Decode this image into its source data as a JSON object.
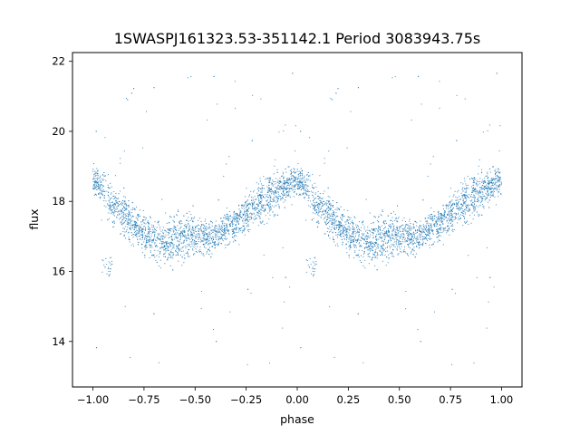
{
  "chart_data": {
    "type": "scatter",
    "title": "1SWASPJ161323.53-351142.1 Period 3083943.75s",
    "xlabel": "phase",
    "ylabel": "flux",
    "xlim": [
      -1.1,
      1.1
    ],
    "ylim": [
      12.7,
      22.25
    ],
    "xticks": [
      -1.0,
      -0.75,
      -0.5,
      -0.25,
      0.0,
      0.25,
      0.5,
      0.75,
      1.0
    ],
    "xtick_labels": [
      "−1.00",
      "−0.75",
      "−0.50",
      "−0.25",
      "0.00",
      "0.25",
      "0.50",
      "0.75",
      "1.00"
    ],
    "yticks": [
      14,
      16,
      18,
      20,
      22
    ],
    "ytick_labels": [
      "14",
      "16",
      "18",
      "20",
      "22"
    ],
    "grid": false,
    "legend": "none",
    "marker_color": "#1f77b4",
    "series": [
      {
        "phase_range": [
          -1.0,
          1.0
        ],
        "folded_period_phase": 1.0,
        "envelope": {
          "phase": [
            0.0,
            0.04,
            0.08,
            0.12,
            0.16,
            0.2,
            0.25,
            0.3,
            0.35,
            0.4,
            0.45,
            0.5,
            0.55,
            0.6,
            0.65,
            0.7,
            0.75,
            0.8,
            0.85,
            0.9,
            0.95,
            1.0
          ],
          "median_flux": [
            18.6,
            18.5,
            18.0,
            17.8,
            17.5,
            17.3,
            17.1,
            16.9,
            16.8,
            16.9,
            17.0,
            17.1,
            17.0,
            17.0,
            17.2,
            17.4,
            17.7,
            17.9,
            18.1,
            18.3,
            18.5,
            18.6
          ],
          "min_flux": [
            17.7,
            17.5,
            16.5,
            16.2,
            15.9,
            15.8,
            15.7,
            15.6,
            15.5,
            15.6,
            15.8,
            16.0,
            16.1,
            16.2,
            16.3,
            16.4,
            16.5,
            16.8,
            17.0,
            17.2,
            17.5,
            17.7
          ],
          "max_flux": [
            19.4,
            19.5,
            19.2,
            18.9,
            18.7,
            18.4,
            18.3,
            18.2,
            18.3,
            18.5,
            18.6,
            18.5,
            18.3,
            18.2,
            18.4,
            18.6,
            19.0,
            19.4,
            20.0,
            19.8,
            19.6,
            19.4
          ]
        },
        "dip_feature": {
          "phase": [
            0.04,
            0.1
          ],
          "flux": [
            15.8,
            16.4
          ]
        },
        "outlier_flux_range": [
          13.0,
          21.8
        ]
      }
    ]
  }
}
